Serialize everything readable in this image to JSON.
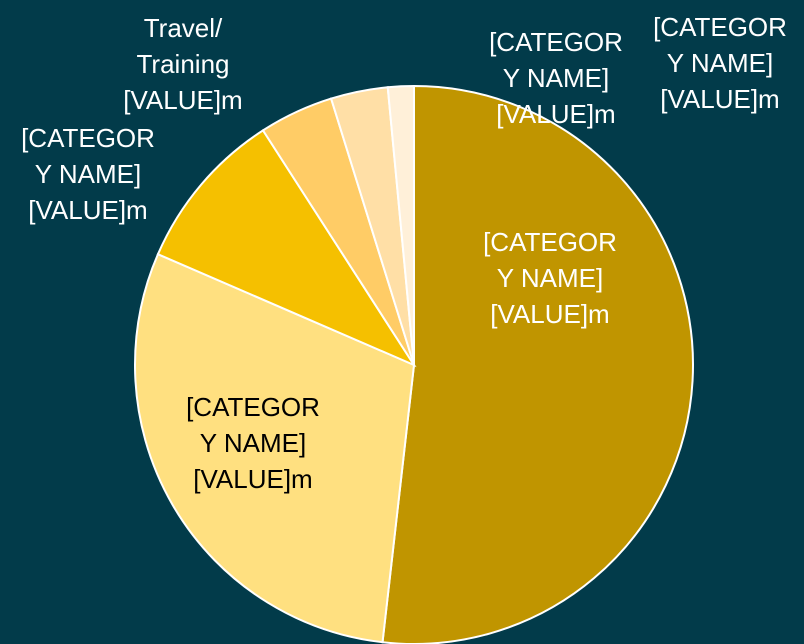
{
  "chart_data": {
    "type": "pie",
    "labels": [
      [
        "[CATEGOR",
        "Y NAME]",
        "[VALUE]m"
      ],
      [
        "[CATEGOR",
        "Y NAME]",
        "[VALUE]m"
      ],
      [
        "[CATEGOR",
        "Y NAME]",
        "[VALUE]m"
      ],
      [
        "Travel/",
        "Training",
        "[VALUE]m"
      ],
      [
        "[CATEGOR",
        "Y NAME]",
        "[VALUE]m"
      ],
      [
        "[CATEGOR",
        "Y NAME]",
        "[VALUE]m"
      ]
    ],
    "values": [
      51.8,
      29.7,
      9.4,
      4.3,
      3.3,
      1.5
    ],
    "colors": [
      "#c09500",
      "#ffe080",
      "#f5c000",
      "#ffcc66",
      "#ffdfa6",
      "#fff0d9"
    ]
  }
}
